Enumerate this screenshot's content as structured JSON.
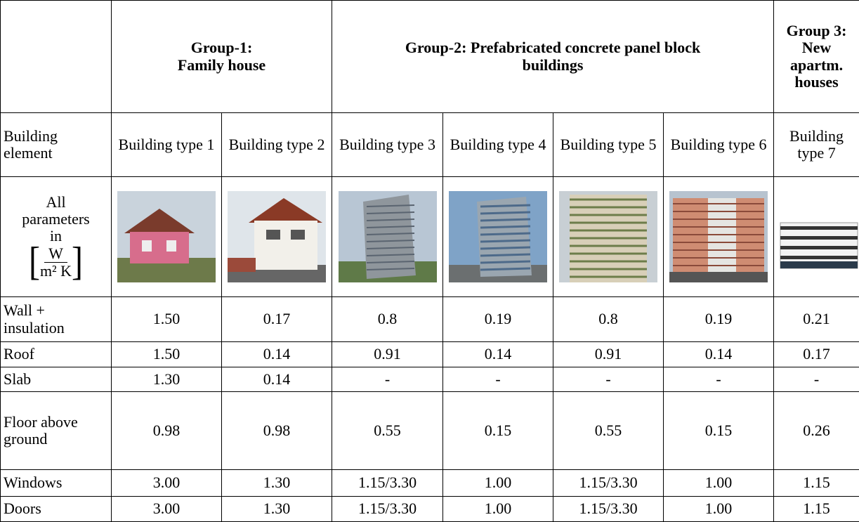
{
  "table": {
    "groups": [
      {
        "lines": [
          "Group-1:",
          "Family house"
        ],
        "span": 2
      },
      {
        "lines": [
          "Group-2: Prefabricated concrete panel block",
          "buildings"
        ],
        "span": 4
      },
      {
        "lines": [
          "Group 3:",
          "New",
          "apartm.",
          "houses"
        ],
        "span": 1
      }
    ],
    "column_header": "Building element",
    "building_types": [
      "Building type 1",
      "Building type 2",
      "Building type 3",
      "Building type 4",
      "Building type 5",
      "Building type 6",
      "Building type 7"
    ],
    "units": {
      "lines": [
        "All",
        "parameters",
        "in"
      ],
      "numerator": "W",
      "denominator": "m² K"
    },
    "rows": [
      {
        "label": "Wall + insulation",
        "values": [
          "1.50",
          "0.17",
          "0.8",
          "0.19",
          "0.8",
          "0.19",
          "0.21"
        ]
      },
      {
        "label": "Roof",
        "values": [
          "1.50",
          "0.14",
          "0.91",
          "0.14",
          "0.91",
          "0.14",
          "0.17"
        ]
      },
      {
        "label": "Slab",
        "values": [
          "1.30",
          "0.14",
          "-",
          "-",
          "-",
          "-",
          "-"
        ]
      },
      {
        "label": "Floor above ground",
        "values": [
          "0.98",
          "0.98",
          "0.55",
          "0.15",
          "0.55",
          "0.15",
          "0.26"
        ]
      },
      {
        "label": "Windows",
        "values": [
          "3.00",
          "1.30",
          "1.15/3.30",
          "1.00",
          "1.15/3.30",
          "1.00",
          "1.15"
        ]
      },
      {
        "label": "Doors",
        "values": [
          "3.00",
          "1.30",
          "1.15/3.30",
          "1.00",
          "1.15/3.30",
          "1.00",
          "1.15"
        ]
      }
    ]
  }
}
